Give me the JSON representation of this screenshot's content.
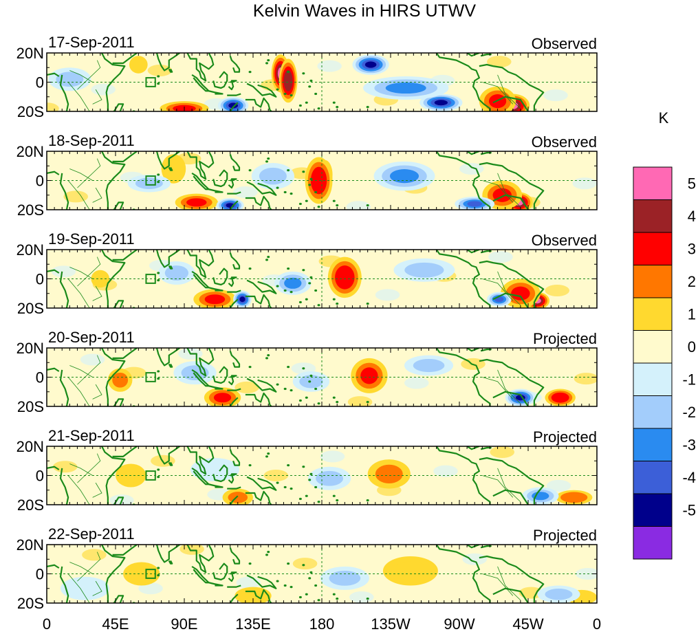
{
  "chart_data": {
    "type": "heatmap",
    "title": "Kelvin Waves in HIRS UTWV",
    "xlabel": "",
    "ylabel": "",
    "x_ticks": [
      "0",
      "45E",
      "90E",
      "135E",
      "180",
      "135W",
      "90W",
      "45W",
      "0"
    ],
    "y_ticks": [
      "20N",
      "0",
      "20S"
    ],
    "xlim": [
      0,
      360
    ],
    "ylim": [
      -20,
      20
    ],
    "colorbar": {
      "unit": "K",
      "levels": [
        "5",
        "4",
        "3",
        "2",
        "1",
        "0",
        "-1",
        "-2",
        "-3",
        "-4",
        "-5"
      ],
      "colors": [
        "#ff69b4",
        "#9b2226",
        "#ff0000",
        "#ff7700",
        "#ffd92f",
        "#fffacd",
        "#d4f1fb",
        "#a3cdfb",
        "#2a8bf0",
        "#3c5fd8",
        "#00008b",
        "#8a2be2"
      ]
    },
    "colors": {
      "coastline": "#1a8a1a",
      "box": "#1a8a1a",
      "reference_line": "#1a8a1a"
    },
    "panels": [
      {
        "date": "17-Sep-2011",
        "label": "Observed",
        "anomalies": [
          {
            "lon": 153,
            "lat": 6,
            "value": 5,
            "rlon": 6,
            "rlat": 13
          },
          {
            "lon": 158,
            "lat": 1,
            "value": 4.5,
            "rlon": 6,
            "rlat": 15
          },
          {
            "lon": 305,
            "lat": -16,
            "value": 5,
            "rlon": 11,
            "rlat": 8
          },
          {
            "lon": 295,
            "lat": -13,
            "value": 3,
            "rlon": 12,
            "rlat": 10
          },
          {
            "lon": 90,
            "lat": -18,
            "value": 3,
            "rlon": 16,
            "rlat": 5
          },
          {
            "lon": 60,
            "lat": 12,
            "value": 1.5,
            "rlon": 6,
            "rlat": 6
          },
          {
            "lon": 212,
            "lat": 12,
            "value": -5,
            "rlon": 12,
            "rlat": 7
          },
          {
            "lon": 122,
            "lat": -16,
            "value": -5,
            "rlon": 10,
            "rlat": 6
          },
          {
            "lon": 258,
            "lat": -14,
            "value": -5,
            "rlon": 14,
            "rlat": 6
          },
          {
            "lon": 235,
            "lat": -4,
            "value": -3,
            "rlon": 28,
            "rlat": 8
          },
          {
            "lon": 15,
            "lat": 2,
            "value": -2,
            "rlon": 14,
            "rlat": 8
          }
        ]
      },
      {
        "date": "18-Sep-2011",
        "label": "Observed",
        "anomalies": [
          {
            "lon": 182,
            "lat": 4,
            "value": 5,
            "rlon": 5,
            "rlat": 10
          },
          {
            "lon": 178,
            "lat": 0,
            "value": 3.5,
            "rlon": 9,
            "rlat": 16
          },
          {
            "lon": 309,
            "lat": -15,
            "value": 5,
            "rlon": 9,
            "rlat": 7
          },
          {
            "lon": 298,
            "lat": -10,
            "value": 3,
            "rlon": 13,
            "rlat": 10
          },
          {
            "lon": 98,
            "lat": -15,
            "value": 3,
            "rlon": 14,
            "rlat": 6
          },
          {
            "lon": 83,
            "lat": 8,
            "value": 1.5,
            "rlon": 8,
            "rlat": 10
          },
          {
            "lon": 120,
            "lat": -17,
            "value": -5,
            "rlon": 9,
            "rlat": 5
          },
          {
            "lon": 280,
            "lat": -16,
            "value": -4,
            "rlon": 13,
            "rlat": 5
          },
          {
            "lon": 148,
            "lat": 3,
            "value": -2,
            "rlon": 14,
            "rlat": 9
          },
          {
            "lon": 234,
            "lat": 3,
            "value": -2.5,
            "rlon": 20,
            "rlat": 10
          },
          {
            "lon": 67,
            "lat": -2,
            "value": -2,
            "rlon": 14,
            "rlat": 6
          }
        ]
      },
      {
        "date": "19-Sep-2011",
        "label": "Observed",
        "anomalies": [
          {
            "lon": 197,
            "lat": 4,
            "value": 5,
            "rlon": 6,
            "rlat": 8
          },
          {
            "lon": 195,
            "lat": 1,
            "value": 3.5,
            "rlon": 11,
            "rlat": 14
          },
          {
            "lon": 321,
            "lat": -15,
            "value": 5,
            "rlon": 8,
            "rlat": 6
          },
          {
            "lon": 310,
            "lat": -10,
            "value": 3,
            "rlon": 13,
            "rlat": 10
          },
          {
            "lon": 110,
            "lat": -14,
            "value": 3,
            "rlon": 14,
            "rlat": 7
          },
          {
            "lon": 35,
            "lat": 0,
            "value": 1.5,
            "rlon": 6,
            "rlat": 6
          },
          {
            "lon": 128,
            "lat": -14,
            "value": -5,
            "rlon": 6,
            "rlat": 6
          },
          {
            "lon": 296,
            "lat": -14,
            "value": -4,
            "rlon": 8,
            "rlat": 5
          },
          {
            "lon": 161,
            "lat": -3,
            "value": -2.5,
            "rlon": 12,
            "rlat": 8
          },
          {
            "lon": 85,
            "lat": 4,
            "value": -2,
            "rlon": 12,
            "rlat": 8
          },
          {
            "lon": 247,
            "lat": 6,
            "value": -2,
            "rlon": 20,
            "rlat": 8
          }
        ]
      },
      {
        "date": "20-Sep-2011",
        "label": "Projected",
        "anomalies": [
          {
            "lon": 213,
            "lat": 3,
            "value": 4.5,
            "rlon": 5,
            "rlat": 6
          },
          {
            "lon": 211,
            "lat": 1,
            "value": 3,
            "rlon": 12,
            "rlat": 12
          },
          {
            "lon": 336,
            "lat": -14,
            "value": 3.5,
            "rlon": 10,
            "rlat": 6
          },
          {
            "lon": 115,
            "lat": -14,
            "value": 3,
            "rlon": 12,
            "rlat": 7
          },
          {
            "lon": 48,
            "lat": -2,
            "value": 2,
            "rlon": 8,
            "rlat": 8
          },
          {
            "lon": 310,
            "lat": -14,
            "value": -4.5,
            "rlon": 10,
            "rlat": 6
          },
          {
            "lon": 173,
            "lat": -3,
            "value": -2,
            "rlon": 12,
            "rlat": 7
          },
          {
            "lon": 97,
            "lat": 3,
            "value": -1.5,
            "rlon": 14,
            "rlat": 8
          },
          {
            "lon": 250,
            "lat": 8,
            "value": -2,
            "rlon": 16,
            "rlat": 7
          }
        ]
      },
      {
        "date": "21-Sep-2011",
        "label": "Projected",
        "anomalies": [
          {
            "lon": 225,
            "lat": 4,
            "value": 3.5,
            "rlon": 6,
            "rlat": 5
          },
          {
            "lon": 224,
            "lat": 1,
            "value": 2,
            "rlon": 14,
            "rlat": 10
          },
          {
            "lon": 345,
            "lat": -15,
            "value": 2.5,
            "rlon": 12,
            "rlat": 5
          },
          {
            "lon": 125,
            "lat": -15,
            "value": 2,
            "rlon": 10,
            "rlat": 6
          },
          {
            "lon": 55,
            "lat": 0,
            "value": 1.5,
            "rlon": 10,
            "rlat": 8
          },
          {
            "lon": 323,
            "lat": -14,
            "value": -3,
            "rlon": 12,
            "rlat": 6
          },
          {
            "lon": 185,
            "lat": -2,
            "value": -1.5,
            "rlon": 14,
            "rlat": 8
          },
          {
            "lon": 110,
            "lat": 4,
            "value": -1,
            "rlon": 16,
            "rlat": 8
          }
        ]
      },
      {
        "date": "22-Sep-2011",
        "label": "Projected",
        "anomalies": [
          {
            "lon": 236,
            "lat": 4,
            "value": 2,
            "rlon": 10,
            "rlat": 6
          },
          {
            "lon": 238,
            "lat": 2,
            "value": 1.2,
            "rlon": 18,
            "rlat": 10
          },
          {
            "lon": 62,
            "lat": 0,
            "value": 1.2,
            "rlon": 12,
            "rlat": 8
          },
          {
            "lon": 135,
            "lat": -15,
            "value": 1.5,
            "rlon": 12,
            "rlat": 6
          },
          {
            "lon": 350,
            "lat": -16,
            "value": 1.2,
            "rlon": 10,
            "rlat": 5
          },
          {
            "lon": 195,
            "lat": -3,
            "value": -1.2,
            "rlon": 16,
            "rlat": 8
          },
          {
            "lon": 335,
            "lat": -14,
            "value": -1.5,
            "rlon": 14,
            "rlat": 6
          },
          {
            "lon": 25,
            "lat": -10,
            "value": -1,
            "rlon": 16,
            "rlat": 8
          }
        ]
      }
    ]
  }
}
